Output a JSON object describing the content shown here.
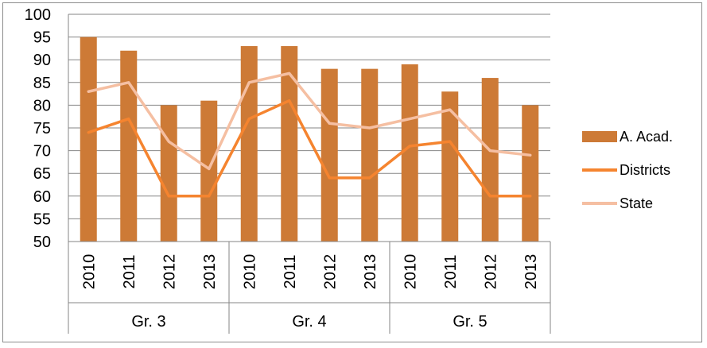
{
  "chart_data": {
    "type": "bar",
    "title": "",
    "xlabel": "",
    "ylabel": "",
    "ylim": [
      50,
      100
    ],
    "yticks": [
      "50",
      "55",
      "60",
      "65",
      "70",
      "75",
      "80",
      "85",
      "90",
      "95",
      "100"
    ],
    "grid": true,
    "legend_position": "right",
    "groups": [
      {
        "label": "Gr. 3",
        "categories": [
          "2010",
          "2011",
          "2012",
          "2013"
        ]
      },
      {
        "label": "Gr. 4",
        "categories": [
          "2010",
          "2011",
          "2012",
          "2013"
        ]
      },
      {
        "label": "Gr. 5",
        "categories": [
          "2010",
          "2011",
          "2012",
          "2013"
        ]
      }
    ],
    "series": [
      {
        "name": "A. Acad.",
        "type": "bar",
        "color": "#cd7a36",
        "values": [
          95,
          92,
          80,
          81,
          93,
          93,
          88,
          88,
          89,
          83,
          86,
          80
        ]
      },
      {
        "name": "Districts",
        "type": "line",
        "color": "#f5842f",
        "values": [
          74,
          77,
          60,
          60,
          77,
          81,
          64,
          64,
          71,
          72,
          60,
          60
        ]
      },
      {
        "name": "State",
        "type": "line",
        "color": "#f5bfa2",
        "values": [
          83,
          85,
          72,
          66,
          85,
          87,
          76,
          75,
          77,
          79,
          70,
          69
        ]
      }
    ]
  }
}
